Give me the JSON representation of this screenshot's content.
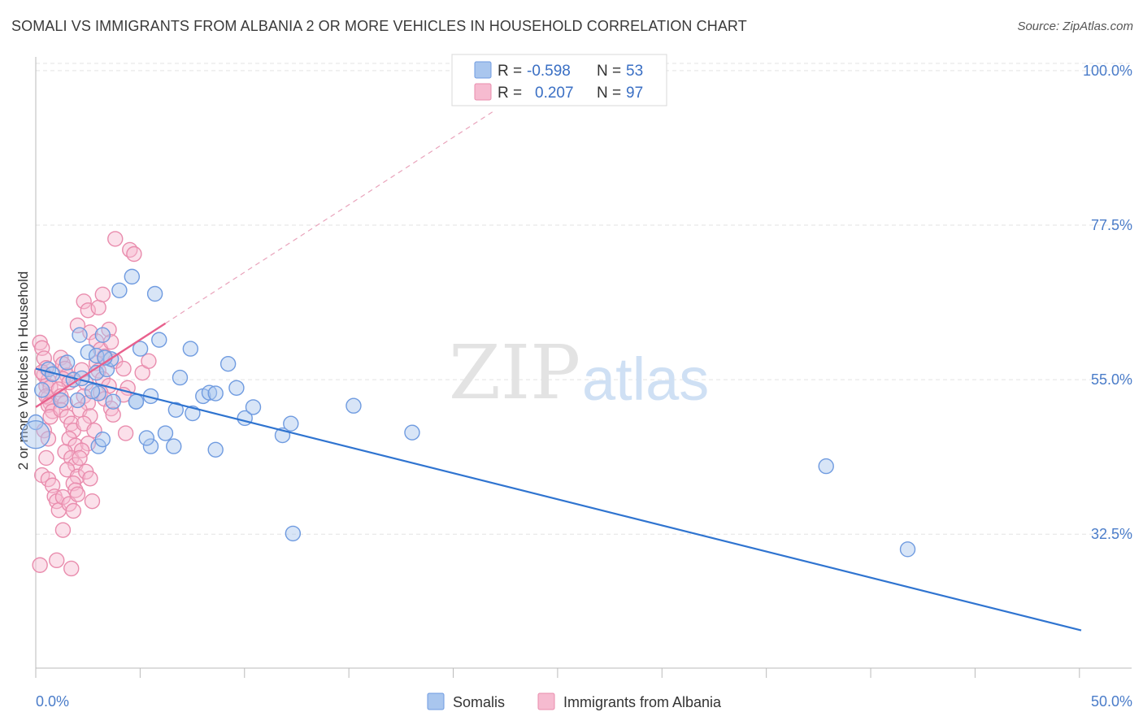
{
  "header": {
    "title": "SOMALI VS IMMIGRANTS FROM ALBANIA 2 OR MORE VEHICLES IN HOUSEHOLD CORRELATION CHART",
    "source": "Source: ZipAtlas.com"
  },
  "watermark": {
    "zip": "ZIP",
    "atlas": "atlas"
  },
  "legend_box": {
    "rows": [
      {
        "r_label": "R =",
        "r_value": "-0.598",
        "n_label": "N =",
        "n_value": "53",
        "color": "#a9c6ee",
        "stroke": "#6f9be0"
      },
      {
        "r_label": "R =",
        "r_value": "0.207",
        "n_label": "N =",
        "n_value": "97",
        "color": "#f6bbd0",
        "stroke": "#e98cad"
      }
    ]
  },
  "colors": {
    "blue_fill": "#a9c6ee",
    "blue_stroke": "#6f9be0",
    "blue_line": "#2f74d0",
    "pink_fill": "#f6bbd0",
    "pink_stroke": "#e98cad",
    "pink_line": "#e8608d",
    "grid": "#e3e3e3",
    "tick_text": "#4a7cc9"
  },
  "chart_data": {
    "type": "scatter",
    "title": "SOMALI VS IMMIGRANTS FROM ALBANIA 2 OR MORE VEHICLES IN HOUSEHOLD CORRELATION CHART",
    "xlabel": "",
    "ylabel": "2 or more Vehicles in Household",
    "xlim": [
      0,
      50
    ],
    "ylim": [
      13,
      102
    ],
    "x_tick_labels": [
      "0.0%",
      "50.0%"
    ],
    "y_ticks": [
      32.5,
      55.0,
      77.5,
      100.0
    ],
    "y_tick_labels": [
      "32.5%",
      "55.0%",
      "77.5%",
      "100.0%"
    ],
    "grid": true,
    "legend_position": "bottom",
    "series": [
      {
        "name": "Somalis",
        "color": "#a9c6ee",
        "points": [
          [
            0.0,
            48.8
          ],
          [
            0.3,
            53.5
          ],
          [
            0.6,
            56.5
          ],
          [
            0.8,
            55.8
          ],
          [
            1.2,
            52.0
          ],
          [
            1.5,
            57.5
          ],
          [
            1.8,
            55.0
          ],
          [
            2.1,
            61.5
          ],
          [
            2.0,
            52.0
          ],
          [
            2.2,
            55.2
          ],
          [
            2.5,
            59.0
          ],
          [
            2.9,
            58.5
          ],
          [
            2.9,
            56.0
          ],
          [
            3.2,
            61.5
          ],
          [
            3.4,
            56.5
          ],
          [
            3.7,
            51.8
          ],
          [
            3.6,
            58.0
          ],
          [
            3.3,
            58.2
          ],
          [
            3.0,
            53.0
          ],
          [
            2.7,
            53.3
          ],
          [
            4.0,
            68.0
          ],
          [
            4.6,
            70.0
          ],
          [
            4.8,
            51.8
          ],
          [
            5.0,
            59.5
          ],
          [
            3.0,
            45.3
          ],
          [
            3.2,
            46.3
          ],
          [
            4.8,
            51.8
          ],
          [
            5.5,
            45.3
          ],
          [
            5.3,
            46.5
          ],
          [
            5.5,
            52.6
          ],
          [
            5.7,
            67.5
          ],
          [
            5.9,
            60.8
          ],
          [
            6.2,
            47.2
          ],
          [
            6.6,
            45.3
          ],
          [
            6.7,
            50.6
          ],
          [
            6.9,
            55.3
          ],
          [
            7.4,
            59.5
          ],
          [
            7.5,
            50.1
          ],
          [
            8.0,
            52.6
          ],
          [
            8.3,
            53.1
          ],
          [
            8.6,
            53.0
          ],
          [
            8.6,
            44.8
          ],
          [
            9.2,
            57.3
          ],
          [
            9.6,
            53.8
          ],
          [
            10.0,
            49.4
          ],
          [
            10.4,
            51.0
          ],
          [
            11.8,
            46.9
          ],
          [
            12.2,
            48.6
          ],
          [
            12.3,
            32.6
          ],
          [
            15.2,
            51.2
          ],
          [
            18.0,
            47.3
          ],
          [
            37.8,
            42.4
          ],
          [
            41.7,
            30.3
          ]
        ]
      },
      {
        "name": "Immigrants from Albania",
        "color": "#f6bbd0",
        "points": [
          [
            0.2,
            60.4
          ],
          [
            0.3,
            59.6
          ],
          [
            0.4,
            58.1
          ],
          [
            0.5,
            56.7
          ],
          [
            0.4,
            55.7
          ],
          [
            0.6,
            54.9
          ],
          [
            0.5,
            54.1
          ],
          [
            0.7,
            53.9
          ],
          [
            0.6,
            52.4
          ],
          [
            0.7,
            51.6
          ],
          [
            0.3,
            56.1
          ],
          [
            0.5,
            52.6
          ],
          [
            0.6,
            51.3
          ],
          [
            0.8,
            50.4
          ],
          [
            0.7,
            49.6
          ],
          [
            0.4,
            47.6
          ],
          [
            0.6,
            46.4
          ],
          [
            0.5,
            43.6
          ],
          [
            0.3,
            41.1
          ],
          [
            0.6,
            40.5
          ],
          [
            0.8,
            39.6
          ],
          [
            0.9,
            38.0
          ],
          [
            1.0,
            37.3
          ],
          [
            1.1,
            36.0
          ],
          [
            1.3,
            33.1
          ],
          [
            0.2,
            28.0
          ],
          [
            1.0,
            28.7
          ],
          [
            1.7,
            27.5
          ],
          [
            1.2,
            58.2
          ],
          [
            1.3,
            57.3
          ],
          [
            1.4,
            56.6
          ],
          [
            1.5,
            55.6
          ],
          [
            1.3,
            55.1
          ],
          [
            1.6,
            54.6
          ],
          [
            1.1,
            53.6
          ],
          [
            1.2,
            52.6
          ],
          [
            1.4,
            51.6
          ],
          [
            1.2,
            50.6
          ],
          [
            1.5,
            49.6
          ],
          [
            1.7,
            48.6
          ],
          [
            1.8,
            47.6
          ],
          [
            1.6,
            46.4
          ],
          [
            1.9,
            45.4
          ],
          [
            1.4,
            44.5
          ],
          [
            1.7,
            43.6
          ],
          [
            1.9,
            42.6
          ],
          [
            1.5,
            41.9
          ],
          [
            2.0,
            40.9
          ],
          [
            1.8,
            39.9
          ],
          [
            1.9,
            38.9
          ],
          [
            1.3,
            37.9
          ],
          [
            1.6,
            36.9
          ],
          [
            1.8,
            35.9
          ],
          [
            2.2,
            56.4
          ],
          [
            2.4,
            54.5
          ],
          [
            2.3,
            52.6
          ],
          [
            2.5,
            51.6
          ],
          [
            2.1,
            50.6
          ],
          [
            2.6,
            49.7
          ],
          [
            2.3,
            48.6
          ],
          [
            2.8,
            47.6
          ],
          [
            2.5,
            45.7
          ],
          [
            2.2,
            44.7
          ],
          [
            2.1,
            43.6
          ],
          [
            2.4,
            41.6
          ],
          [
            2.6,
            40.6
          ],
          [
            2.0,
            38.3
          ],
          [
            2.7,
            37.3
          ],
          [
            2.3,
            66.4
          ],
          [
            2.5,
            65.1
          ],
          [
            2.0,
            62.9
          ],
          [
            2.6,
            61.9
          ],
          [
            2.9,
            60.6
          ],
          [
            3.1,
            59.4
          ],
          [
            3.3,
            58.4
          ],
          [
            2.9,
            57.4
          ],
          [
            3.0,
            56.3
          ],
          [
            3.2,
            55.1
          ],
          [
            3.5,
            54.1
          ],
          [
            3.1,
            53.1
          ],
          [
            3.3,
            52.2
          ],
          [
            3.6,
            50.8
          ],
          [
            3.7,
            49.9
          ],
          [
            3.0,
            65.5
          ],
          [
            3.5,
            62.3
          ],
          [
            3.6,
            60.5
          ],
          [
            3.2,
            67.4
          ],
          [
            3.8,
            57.7
          ],
          [
            4.2,
            56.6
          ],
          [
            4.4,
            53.8
          ],
          [
            4.2,
            52.8
          ],
          [
            3.8,
            75.5
          ],
          [
            4.5,
            73.9
          ],
          [
            4.7,
            73.3
          ],
          [
            5.1,
            56.0
          ],
          [
            4.3,
            47.2
          ],
          [
            5.4,
            57.7
          ]
        ]
      }
    ],
    "trend_lines": [
      {
        "series": "Somalis",
        "x": [
          0,
          50
        ],
        "y": [
          56.6,
          18.5
        ]
      },
      {
        "series": "Immigrants from Albania",
        "x": [
          0,
          6.2
        ],
        "y": [
          51.0,
          63.2
        ]
      }
    ]
  },
  "bottom_legend": {
    "items": [
      {
        "label": "Somalis"
      },
      {
        "label": "Immigrants from Albania"
      }
    ]
  }
}
